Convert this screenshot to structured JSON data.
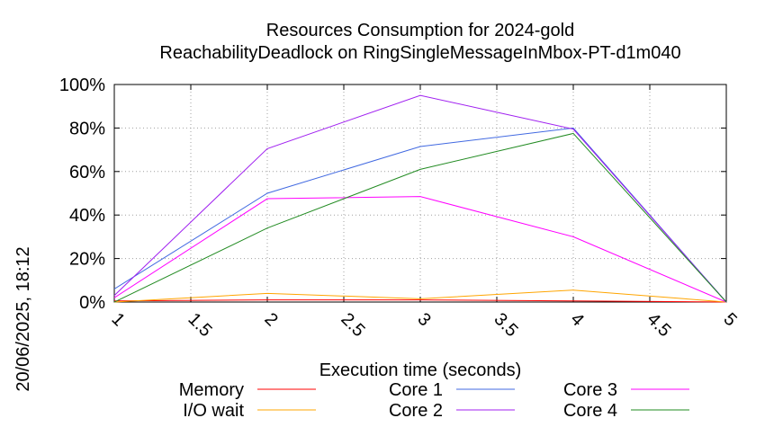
{
  "chart_data": {
    "type": "line",
    "title": "Resources Consumption for 2024-gold",
    "subtitle": "ReachabilityDeadlock on RingSingleMessageInMbox-PT-d1m040",
    "xlabel": "Execution time (seconds)",
    "ylabel": "",
    "timestamp": "20/06/2025, 18:12",
    "xlim": [
      1,
      5
    ],
    "ylim": [
      0,
      100
    ],
    "x_ticks": [
      "1",
      "1.5",
      "2",
      "2.5",
      "3",
      "3.5",
      "4",
      "4.5",
      "5"
    ],
    "y_ticks": [
      "0%",
      "20%",
      "40%",
      "60%",
      "80%",
      "100%"
    ],
    "grid": true,
    "legend_position": "bottom",
    "x": [
      1,
      2,
      3,
      4,
      5
    ],
    "series": [
      {
        "name": "Memory",
        "color": "#ff0000",
        "values": [
          0.5,
          1,
          1,
          0.5,
          0
        ]
      },
      {
        "name": "I/O wait",
        "color": "#ffa500",
        "values": [
          0,
          4,
          1.5,
          5.5,
          0
        ]
      },
      {
        "name": "Core 1",
        "color": "#4169e1",
        "values": [
          6,
          50,
          71.5,
          80,
          0
        ]
      },
      {
        "name": "Core 2",
        "color": "#a020f0",
        "values": [
          3,
          70.5,
          95,
          79.5,
          0
        ]
      },
      {
        "name": "Core 3",
        "color": "#ff00ff",
        "values": [
          2,
          47.5,
          48.5,
          30,
          0
        ]
      },
      {
        "name": "Core 4",
        "color": "#228b22",
        "values": [
          0,
          34,
          61,
          77.5,
          0
        ]
      }
    ]
  }
}
